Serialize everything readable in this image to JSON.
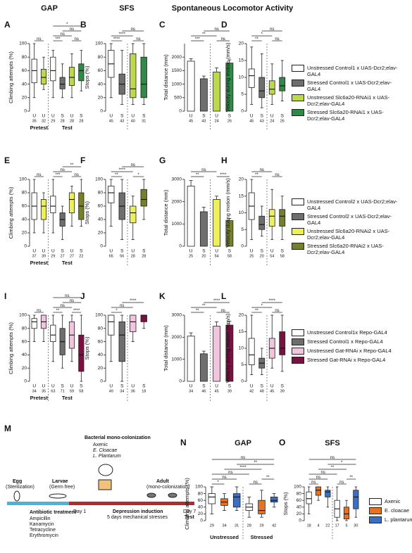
{
  "headers": [
    "GAP",
    "SFS",
    "Spontaneous Locomotor Activity"
  ],
  "chart_data": [
    {
      "type": "box",
      "panel": "A",
      "ylabel": "Climbing attempts (%)",
      "ylim": [
        0,
        100
      ],
      "yticks": [
        0,
        20,
        40,
        60,
        80,
        100
      ],
      "categories": [
        "U",
        "U",
        "U",
        "S",
        "U",
        "S"
      ],
      "n": [
        35,
        32,
        29,
        28,
        28,
        28
      ],
      "groups": [
        "Pretest",
        "Test"
      ],
      "boxes": [
        {
          "color": "#ffffff",
          "stats": [
            20,
            42,
            60,
            77,
            100
          ]
        },
        {
          "color": "#bcd94a",
          "stats": [
            32,
            40,
            50,
            62,
            80
          ]
        },
        {
          "color": "#ffffff",
          "stats": [
            20,
            45,
            60,
            80,
            90
          ]
        },
        {
          "color": "#6e6e6e",
          "stats": [
            20,
            33,
            40,
            50,
            70
          ]
        },
        {
          "color": "#bcd94a",
          "stats": [
            20,
            38,
            50,
            65,
            85
          ]
        },
        {
          "color": "#2f8a47",
          "stats": [
            30,
            45,
            60,
            70,
            90
          ]
        }
      ],
      "annotations": [
        "ns",
        "***",
        "ns",
        "ns",
        "ns",
        "*"
      ]
    },
    {
      "type": "box",
      "panel": "B",
      "ylabel": "Stops (%)",
      "ylim": [
        0,
        100
      ],
      "yticks": [
        0,
        20,
        40,
        60,
        80,
        100
      ],
      "categories": [
        "U",
        "S",
        "U",
        "S"
      ],
      "n": [
        45,
        43,
        40,
        31
      ],
      "boxes": [
        {
          "color": "#ffffff",
          "stats": [
            20,
            50,
            70,
            90,
            100
          ]
        },
        {
          "color": "#6e6e6e",
          "stats": [
            10,
            25,
            40,
            55,
            90
          ]
        },
        {
          "color": "#bcd94a",
          "stats": [
            10,
            20,
            33,
            85,
            100
          ]
        },
        {
          "color": "#2f8a47",
          "stats": [
            10,
            20,
            40,
            80,
            100
          ]
        }
      ],
      "annotations": [
        "****",
        "ns",
        "****",
        "ns"
      ]
    },
    {
      "type": "bar",
      "panel": "C",
      "ylabel": "Total distance (mm)",
      "ylim": [
        0,
        2500
      ],
      "yticks": [
        0,
        500,
        1000,
        1500,
        2000
      ],
      "categories": [
        "U",
        "S",
        "U",
        "S"
      ],
      "n": [
        45,
        43,
        24,
        26
      ],
      "values": [
        1850,
        1200,
        1450,
        1780
      ],
      "errors": [
        90,
        100,
        150,
        120
      ],
      "colors": [
        "#ffffff",
        "#6e6e6e",
        "#bcd94a",
        "#2f8a47"
      ],
      "annotations": [
        "***",
        "ns",
        "**",
        "ns"
      ]
    },
    {
      "type": "box",
      "panel": "D",
      "ylabel": "Velocity during motion (mm/s)",
      "ylim": [
        0,
        20
      ],
      "yticks": [
        0,
        5,
        10,
        15,
        20
      ],
      "categories": [
        "U",
        "S",
        "U",
        "S"
      ],
      "n": [
        45,
        43,
        24,
        26
      ],
      "boxes": [
        {
          "color": "#ffffff",
          "stats": [
            2,
            7,
            10.5,
            12.5,
            19
          ]
        },
        {
          "color": "#6e6e6e",
          "stats": [
            1,
            4,
            6,
            10,
            17
          ]
        },
        {
          "color": "#bcd94a",
          "stats": [
            2,
            5,
            6.5,
            9,
            14
          ]
        },
        {
          "color": "#2f8a47",
          "stats": [
            3,
            6,
            7.5,
            10,
            15
          ]
        }
      ],
      "annotations": [
        "**",
        "ns",
        "*",
        "ns"
      ]
    },
    {
      "type": "box",
      "panel": "E",
      "ylabel": "Climbing attempts (%)",
      "ylim": [
        0,
        100
      ],
      "yticks": [
        0,
        20,
        40,
        60,
        80,
        100
      ],
      "categories": [
        "U",
        "U",
        "U",
        "S",
        "U",
        "S"
      ],
      "n": [
        37,
        39,
        29,
        27,
        27,
        22
      ],
      "groups": [
        "Pretest",
        "Test"
      ],
      "boxes": [
        {
          "color": "#ffffff",
          "stats": [
            20,
            40,
            60,
            80,
            100
          ]
        },
        {
          "color": "#eef05a",
          "stats": [
            20,
            40,
            60,
            70,
            80
          ]
        },
        {
          "color": "#ffffff",
          "stats": [
            20,
            50,
            60,
            75,
            100
          ]
        },
        {
          "color": "#6e6e6e",
          "stats": [
            10,
            30,
            40,
            50,
            60
          ]
        },
        {
          "color": "#eef05a",
          "stats": [
            30,
            50,
            70,
            80,
            90
          ]
        },
        {
          "color": "#76802a",
          "stats": [
            30,
            40,
            60,
            80,
            100
          ]
        }
      ],
      "annotations": [
        "ns",
        "***",
        "ns",
        "ns",
        "**"
      ]
    },
    {
      "type": "box",
      "panel": "F",
      "ylabel": "Stops (%)",
      "ylim": [
        0,
        100
      ],
      "yticks": [
        0,
        20,
        40,
        60,
        80,
        100
      ],
      "categories": [
        "U",
        "S",
        "U",
        "S"
      ],
      "n": [
        65,
        56,
        28,
        28
      ],
      "boxes": [
        {
          "color": "#ffffff",
          "stats": [
            30,
            65,
            80,
            90,
            100
          ]
        },
        {
          "color": "#6e6e6e",
          "stats": [
            10,
            40,
            60,
            80,
            100
          ]
        },
        {
          "color": "#eef05a",
          "stats": [
            10,
            35,
            50,
            60,
            75
          ]
        },
        {
          "color": "#76802a",
          "stats": [
            40,
            60,
            70,
            85,
            100
          ]
        }
      ],
      "annotations": [
        "**",
        "*",
        "****",
        "ns"
      ]
    },
    {
      "type": "bar",
      "panel": "G",
      "ylabel": "Total distance (mm)",
      "ylim": [
        0,
        3000
      ],
      "yticks": [
        0,
        1000,
        2000,
        3000
      ],
      "categories": [
        "U",
        "S",
        "U",
        "S"
      ],
      "n": [
        25,
        20,
        54,
        58
      ],
      "values": [
        2700,
        1550,
        2100,
        1150
      ],
      "errors": [
        250,
        200,
        150,
        100
      ],
      "colors": [
        "#ffffff",
        "#6e6e6e",
        "#eef05a",
        "#76802a"
      ],
      "annotations": [
        "**",
        "****",
        "ns"
      ]
    },
    {
      "type": "box",
      "panel": "H",
      "ylabel": "Velocity during motion (mm/s)",
      "ylim": [
        0,
        20
      ],
      "yticks": [
        0,
        5,
        10,
        15,
        20
      ],
      "categories": [
        "U",
        "S",
        "U",
        "S"
      ],
      "n": [
        25,
        20,
        54,
        58
      ],
      "boxes": [
        {
          "color": "#ffffff",
          "stats": [
            2,
            8,
            12,
            16,
            20
          ]
        },
        {
          "color": "#6e6e6e",
          "stats": [
            3,
            5,
            6.5,
            9,
            12
          ]
        },
        {
          "color": "#eef05a",
          "stats": [
            2,
            6,
            9,
            11,
            17
          ]
        },
        {
          "color": "#76802a",
          "stats": [
            2,
            6,
            9,
            11,
            15
          ]
        }
      ],
      "annotations": [
        "**",
        "ns",
        "ns"
      ]
    },
    {
      "type": "box",
      "panel": "I",
      "ylabel": "Climbing attempts (%)",
      "ylim": [
        0,
        100
      ],
      "yticks": [
        0,
        20,
        40,
        60,
        80,
        100
      ],
      "categories": [
        "U",
        "U",
        "U",
        "S",
        "U",
        "S"
      ],
      "n": [
        34,
        35,
        63,
        71,
        59,
        58
      ],
      "groups": [
        "Pretest",
        "Test"
      ],
      "boxes": [
        {
          "color": "#ffffff",
          "stats": [
            60,
            80,
            90,
            95,
            100
          ]
        },
        {
          "color": "#f3c4dd",
          "stats": [
            60,
            80,
            90,
            100,
            100
          ]
        },
        {
          "color": "#ffffff",
          "stats": [
            30,
            60,
            70,
            85,
            100
          ]
        },
        {
          "color": "#6e6e6e",
          "stats": [
            20,
            40,
            60,
            80,
            100
          ]
        },
        {
          "color": "#f3c4dd",
          "stats": [
            30,
            50,
            70,
            90,
            100
          ]
        },
        {
          "color": "#7b1141",
          "stats": [
            0,
            15,
            40,
            70,
            100
          ]
        }
      ],
      "annotations": [
        "ns",
        "**",
        "ns",
        "****",
        "ns",
        "ns"
      ]
    },
    {
      "type": "box",
      "panel": "J",
      "ylabel": "Stops (%)",
      "ylim": [
        0,
        100
      ],
      "yticks": [
        0,
        20,
        40,
        60,
        80,
        100
      ],
      "categories": [
        "U",
        "S",
        "U",
        "S"
      ],
      "n": [
        49,
        34,
        36,
        18
      ],
      "boxes": [
        {
          "color": "#ffffff",
          "stats": [
            30,
            70,
            90,
            100,
            100
          ]
        },
        {
          "color": "#6e6e6e",
          "stats": [
            0,
            30,
            70,
            90,
            100
          ]
        },
        {
          "color": "#f3c4dd",
          "stats": [
            60,
            75,
            90,
            100,
            100
          ]
        },
        {
          "color": "#7b1141",
          "stats": [
            80,
            90,
            100,
            100,
            100
          ]
        }
      ],
      "annotations": [
        "*",
        "ns",
        "****"
      ]
    },
    {
      "type": "bar",
      "panel": "K",
      "ylabel": "Total distance (mm)",
      "ylim": [
        0,
        3000
      ],
      "yticks": [
        0,
        1000,
        2000,
        3000
      ],
      "categories": [
        "U",
        "S",
        "U",
        "S"
      ],
      "n": [
        34,
        46,
        45,
        39
      ],
      "values": [
        2050,
        1250,
        2500,
        2550
      ],
      "errors": [
        150,
        120,
        200,
        180
      ],
      "colors": [
        "#ffffff",
        "#6e6e6e",
        "#f3c4dd",
        "#7b1141"
      ],
      "annotations": [
        "**",
        "ns",
        "**",
        "****"
      ]
    },
    {
      "type": "box",
      "panel": "L",
      "ylabel": "Velocity during motion (mm/s)",
      "ylim": [
        0,
        20
      ],
      "yticks": [
        0,
        5,
        10,
        15,
        20
      ],
      "categories": [
        "U",
        "S",
        "U",
        "S"
      ],
      "n": [
        42,
        48,
        45,
        39
      ],
      "boxes": [
        {
          "color": "#ffffff",
          "stats": [
            2,
            5,
            8,
            13,
            20
          ]
        },
        {
          "color": "#6e6e6e",
          "stats": [
            2,
            4,
            5.5,
            7,
            10
          ]
        },
        {
          "color": "#f3c4dd",
          "stats": [
            4,
            7,
            10,
            13,
            20
          ]
        },
        {
          "color": "#7b1141",
          "stats": [
            3,
            8,
            10,
            15,
            20
          ]
        }
      ],
      "annotations": [
        "**",
        "ns",
        "*",
        "****"
      ]
    },
    {
      "type": "box",
      "panel": "N",
      "title": "GAP",
      "ylabel": "Climbing attempts (%)",
      "ylim": [
        0,
        100
      ],
      "yticks": [
        0,
        20,
        40,
        60,
        80,
        100
      ],
      "categories": [
        null,
        null,
        null,
        null,
        null,
        null
      ],
      "n": [
        29,
        34,
        31,
        28,
        29,
        42
      ],
      "groups": [
        "Unstressed",
        "Stressed"
      ],
      "boxes": [
        {
          "color": "#ffffff",
          "stats": [
            20,
            50,
            70,
            80,
            100
          ]
        },
        {
          "color": "#e8731f",
          "stats": [
            30,
            45,
            55,
            65,
            80
          ]
        },
        {
          "color": "#3b6fc2",
          "stats": [
            30,
            40,
            70,
            80,
            100
          ]
        },
        {
          "color": "#ffffff",
          "stats": [
            10,
            30,
            40,
            50,
            70
          ]
        },
        {
          "color": "#e8731f",
          "stats": [
            10,
            20,
            30,
            60,
            90
          ]
        },
        {
          "color": "#3b6fc2",
          "stats": [
            40,
            55,
            60,
            70,
            80
          ]
        }
      ],
      "annotations": [
        "*",
        "ns",
        "ns",
        "**",
        "ns",
        "****",
        "**",
        "ns"
      ]
    },
    {
      "type": "box",
      "panel": "O",
      "title": "SFS",
      "ylabel": "Stops (%)",
      "ylim": [
        0,
        100
      ],
      "yticks": [
        0,
        20,
        40,
        60,
        80,
        100
      ],
      "categories": [
        null,
        null,
        null,
        null,
        null,
        null
      ],
      "n": [
        18,
        4,
        22,
        17,
        5,
        30
      ],
      "boxes": [
        {
          "color": "#ffffff",
          "stats": [
            20,
            50,
            65,
            85,
            100
          ]
        },
        {
          "color": "#e8731f",
          "stats": [
            60,
            75,
            90,
            100,
            100
          ]
        },
        {
          "color": "#3b6fc2",
          "stats": [
            40,
            70,
            85,
            90,
            100
          ]
        },
        {
          "color": "#ffffff",
          "stats": [
            0,
            10,
            35,
            60,
            100
          ]
        },
        {
          "color": "#e8731f",
          "stats": [
            0,
            5,
            20,
            40,
            60
          ]
        },
        {
          "color": "#3b6fc2",
          "stats": [
            10,
            35,
            70,
            90,
            100
          ]
        }
      ],
      "annotations": [
        "ns",
        "ns",
        "ns",
        "**",
        "ns",
        "**",
        "*",
        "ns"
      ]
    }
  ],
  "legends": [
    [
      {
        "name": "Unstressed Control1 x UAS-Dcr2;elav-GAL4",
        "color": "#ffffff"
      },
      {
        "name": "Stressed Control1 x UAS-Dcr2;elav-GAL4",
        "color": "#6e6e6e"
      },
      {
        "name": "Unstressed Slc6a20-RNAi1 x UAS-Dcr2;elav-GAL4",
        "color": "#bcd94a"
      },
      {
        "name": "Stressed Slc6a20-RNAi1 x UAS-Dcr2;elav-GAL4",
        "color": "#2f8a47"
      }
    ],
    [
      {
        "name": "Unstressed Control2 x UAS-Dcr2;elav-GAL4",
        "color": "#ffffff"
      },
      {
        "name": "Stressed Control2 x UAS-Dcr2;elav-GAL4",
        "color": "#6e6e6e"
      },
      {
        "name": "Unstressed Slc6a20-RNAi2 x UAS-Dcr2;elav-GAL4",
        "color": "#eef05a"
      },
      {
        "name": "Stressed Slc6a20-RNAi2 x UAS-Dcr2;elav-GAL4",
        "color": "#76802a"
      }
    ],
    [
      {
        "name": "Unstressed Control1x Repo-GAL4",
        "color": "#ffffff"
      },
      {
        "name": "Stressed Control1 x Repo-GAL4",
        "color": "#6e6e6e"
      },
      {
        "name": "Unstressed Gat-RNAi x Repo-GAL4",
        "color": "#f3c4dd"
      },
      {
        "name": "Stressed Gat-RNAi x Repo-GAL4",
        "color": "#7b1141"
      }
    ],
    [
      {
        "name": "Axenic",
        "color": "#ffffff"
      },
      {
        "name": "E. cloacae",
        "color": "#e8731f"
      },
      {
        "name": "L. plantarum",
        "color": "#3b6fc2"
      }
    ]
  ],
  "diagram": {
    "panel": "M",
    "colonization_title": "Bacterial mono-colonization",
    "colonization_items": [
      "Axenic",
      "E. Cloacae",
      "L. Plantarum"
    ],
    "stages": [
      {
        "label": "Egg",
        "note": "(Sterilization)"
      },
      {
        "label": "Larvae",
        "note": "(Germ free)"
      },
      {
        "label": "Adult",
        "note": "(mono-colonization)"
      }
    ],
    "antibiotic_title": "Antibiotic treatment",
    "antibiotics": [
      "Ampicillin",
      "Kanamycin",
      "Tetracycline",
      "Erythromycin"
    ],
    "day_start": "Day 1",
    "induction_title": "Depression induction",
    "induction_note": "5 days mechanical stresses",
    "day_end": "Day 7",
    "test": "Test"
  }
}
